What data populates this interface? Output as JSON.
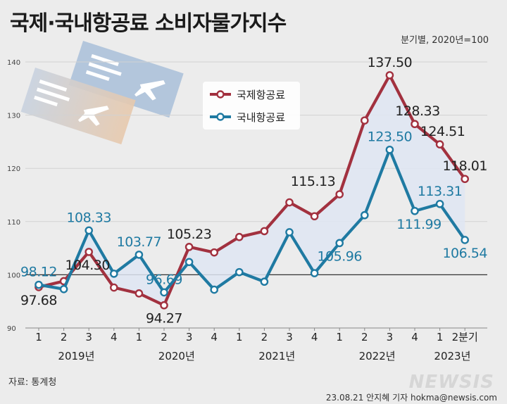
{
  "header": {
    "title": "국제·국내항공료 소비자물가지수",
    "subtitle": "분기별, 2020년=100"
  },
  "footer": {
    "source": "자료: 통계청",
    "credit": "23.08.21 안지혜 기자 hokma@newsis.com",
    "watermark": "NEWSIS"
  },
  "colors": {
    "international": "#a2313f",
    "domestic": "#1f7aa2",
    "fill": "#dfe6f3",
    "background": "#ececec"
  },
  "icons": [
    "plane-ticket-icon",
    "plane-ticket-icon"
  ],
  "chart_data": {
    "type": "line",
    "title": "국제·국내항공료 소비자물가지수",
    "subtitle": "분기별, 2020년=100",
    "categories": [
      "1",
      "2",
      "3",
      "4",
      "1",
      "2",
      "3",
      "4",
      "1",
      "2",
      "3",
      "4",
      "1",
      "2",
      "3",
      "4",
      "1",
      "2분기"
    ],
    "year_labels": [
      {
        "label": "2019년",
        "at": 1.5
      },
      {
        "label": "2020년",
        "at": 5.5
      },
      {
        "label": "2021년",
        "at": 9.5
      },
      {
        "label": "2022년",
        "at": 13.5
      },
      {
        "label": "2023년",
        "at": 16.5
      }
    ],
    "ylim": [
      90,
      140
    ],
    "yticks": [
      90,
      100,
      110,
      120,
      130,
      140
    ],
    "reference_line": 100,
    "legend_position": "top-right",
    "series": [
      {
        "name": "국제항공료",
        "color": "#a2313f",
        "values": [
          97.68,
          98.8,
          104.3,
          97.6,
          96.5,
          94.27,
          105.23,
          104.2,
          107.1,
          108.2,
          113.6,
          111.0,
          115.13,
          129.0,
          137.5,
          128.33,
          124.51,
          118.01
        ],
        "labels": [
          {
            "i": 0,
            "text": "97.68",
            "pos": "below"
          },
          {
            "i": 2,
            "text": "104.30",
            "pos": "below-left"
          },
          {
            "i": 5,
            "text": "94.27",
            "pos": "below"
          },
          {
            "i": 6,
            "text": "105.23",
            "pos": "above"
          },
          {
            "i": 12,
            "text": "115.13",
            "pos": "above-left"
          },
          {
            "i": 14,
            "text": "137.50",
            "pos": "above"
          },
          {
            "i": 15,
            "text": "128.33",
            "pos": "above-right"
          },
          {
            "i": 16,
            "text": "124.51",
            "pos": "above-right"
          },
          {
            "i": 17,
            "text": "118.01",
            "pos": "above"
          }
        ]
      },
      {
        "name": "국내항공료",
        "color": "#1f7aa2",
        "values": [
          98.12,
          97.3,
          108.33,
          100.2,
          103.77,
          96.69,
          102.4,
          97.2,
          100.5,
          98.7,
          108.0,
          100.3,
          105.96,
          111.2,
          123.5,
          111.99,
          113.31,
          106.54
        ],
        "labels": [
          {
            "i": 0,
            "text": "98.12",
            "pos": "above"
          },
          {
            "i": 2,
            "text": "108.33",
            "pos": "above"
          },
          {
            "i": 4,
            "text": "103.77",
            "pos": "above"
          },
          {
            "i": 5,
            "text": "96.69",
            "pos": "above"
          },
          {
            "i": 12,
            "text": "105.96",
            "pos": "below"
          },
          {
            "i": 14,
            "text": "123.50",
            "pos": "above"
          },
          {
            "i": 15,
            "text": "111.99",
            "pos": "below-right"
          },
          {
            "i": 16,
            "text": "113.31",
            "pos": "above"
          },
          {
            "i": 17,
            "text": "106.54",
            "pos": "below"
          }
        ]
      }
    ]
  }
}
